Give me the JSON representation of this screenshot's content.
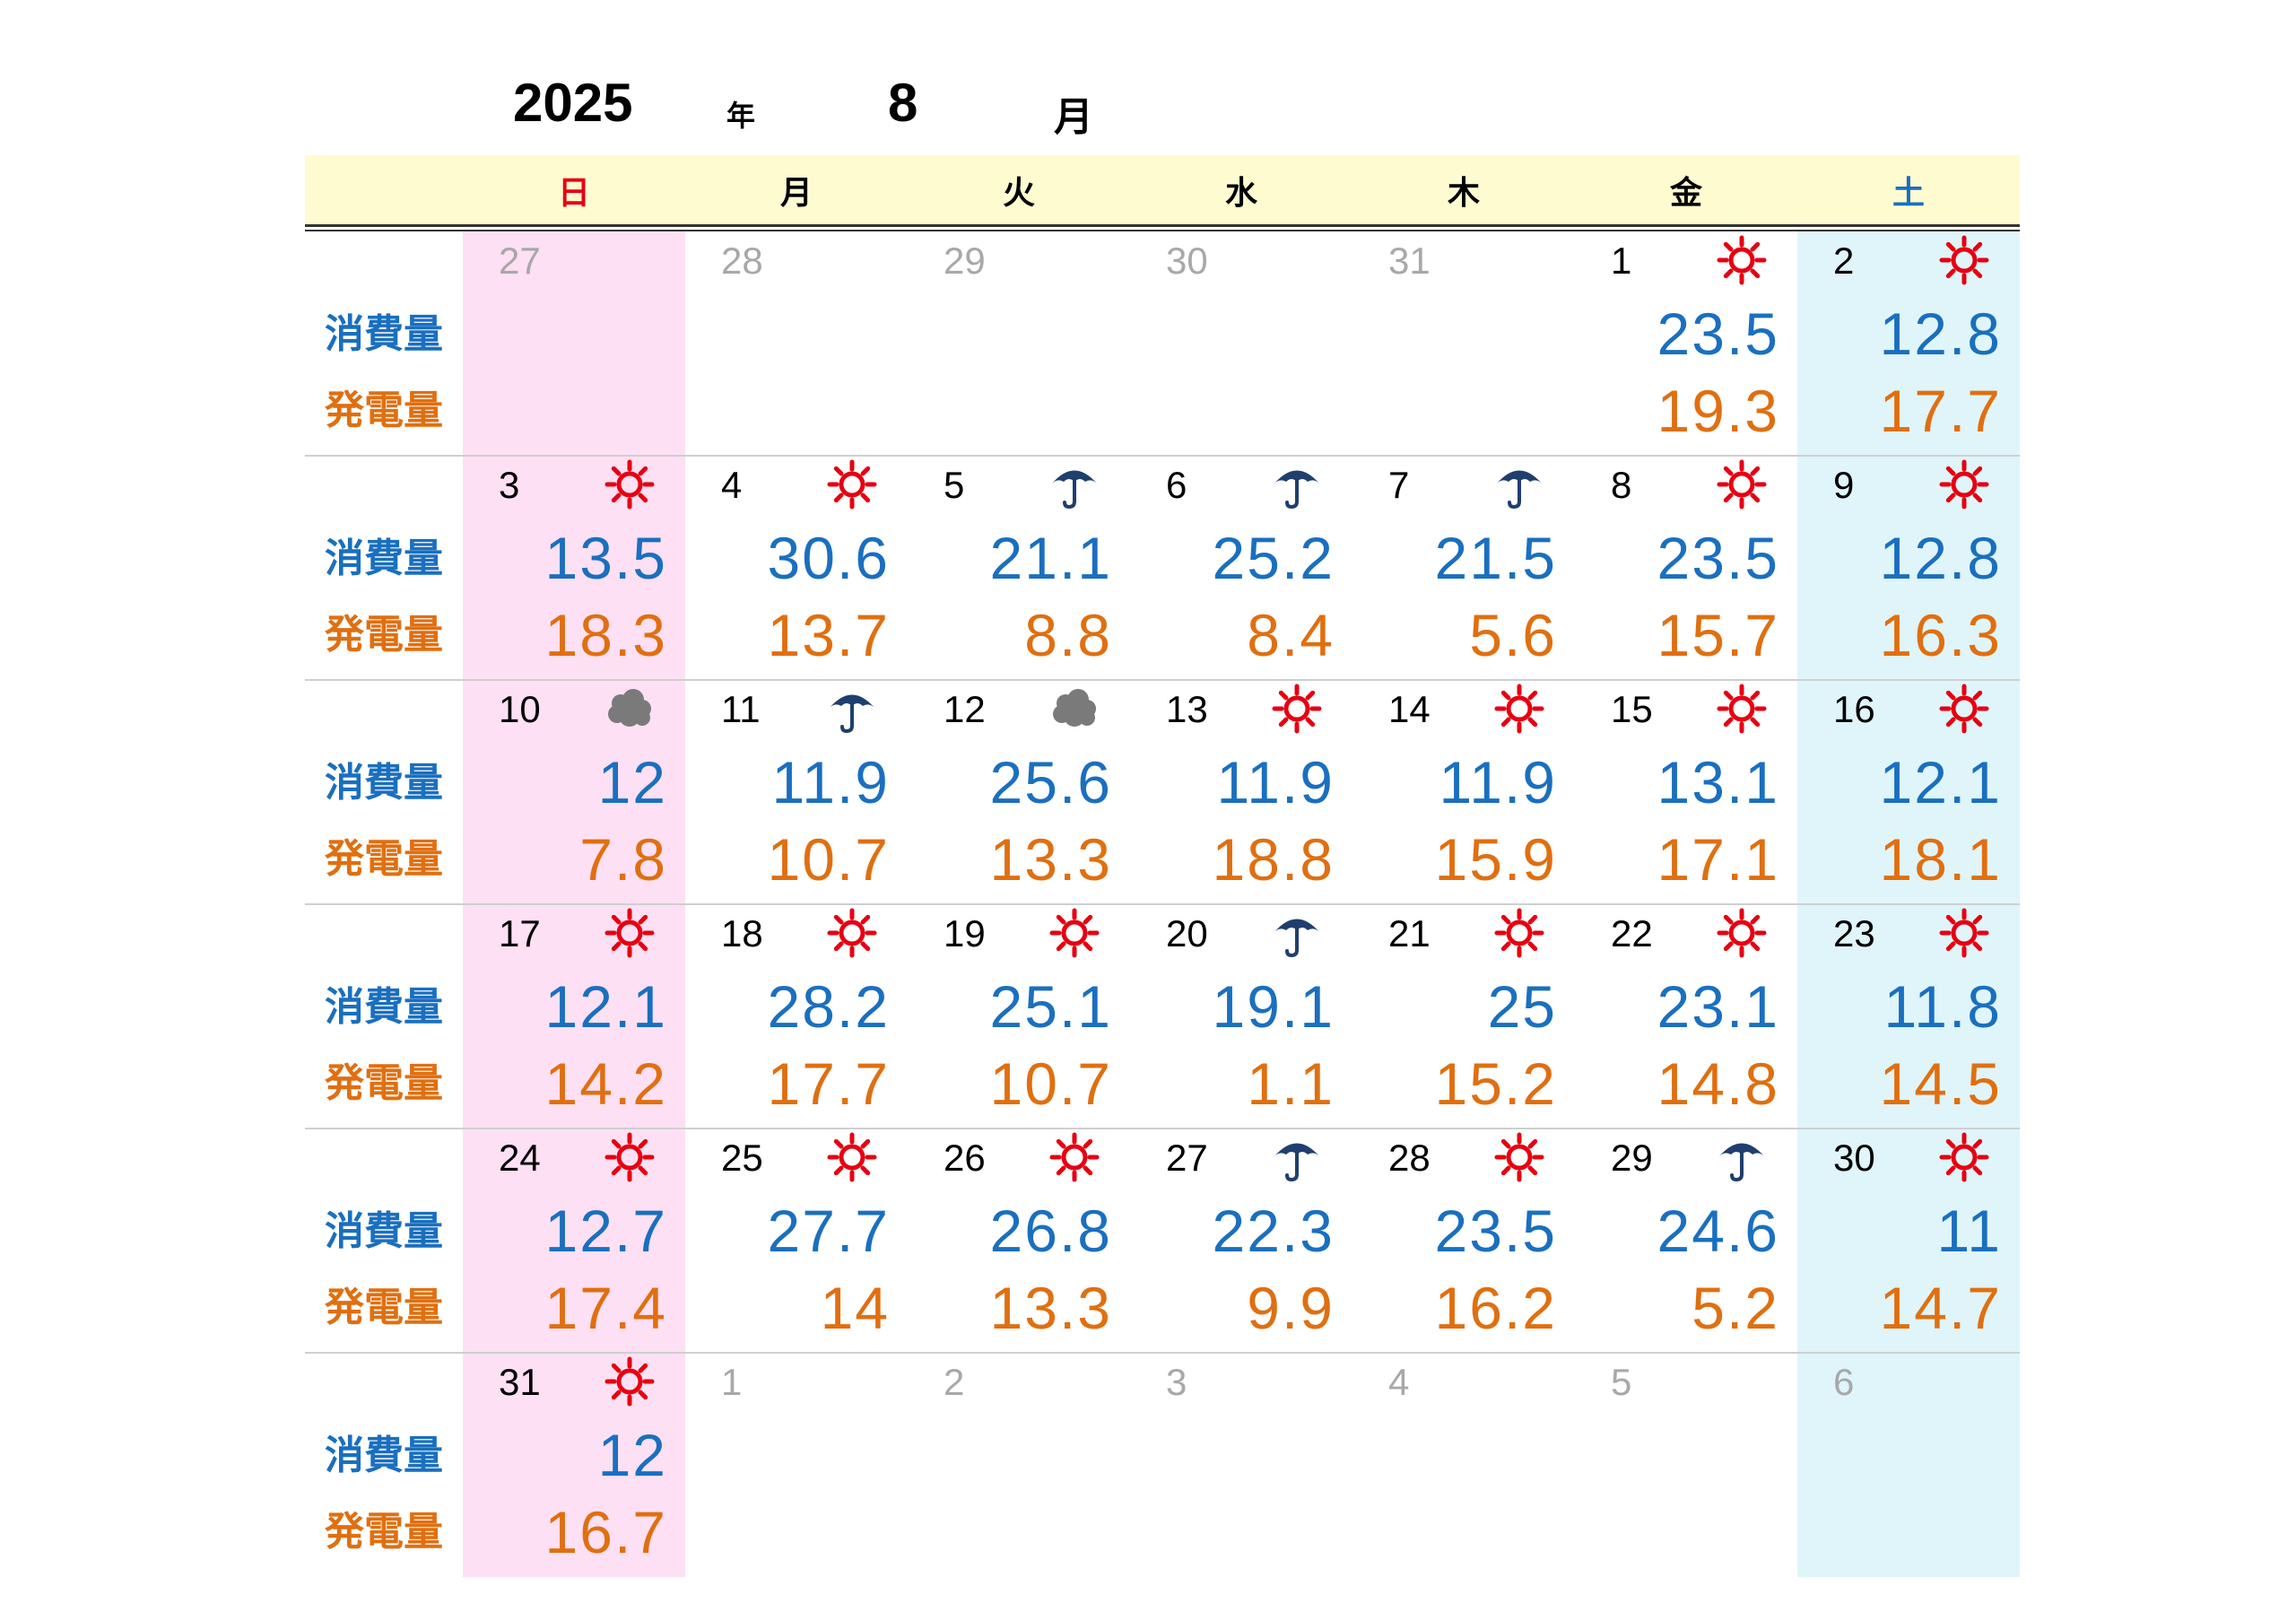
{
  "header": {
    "year": "2025",
    "year_char": "年",
    "month": "8",
    "month_char": "月"
  },
  "weekdays": [
    "日",
    "月",
    "火",
    "水",
    "木",
    "金",
    "土"
  ],
  "weekday_colors": [
    "#e60012",
    "#000000",
    "#000000",
    "#000000",
    "#000000",
    "#000000",
    "#1a6fbf"
  ],
  "labels": {
    "consumption": "消費量",
    "generation": "発電量"
  },
  "colors": {
    "consumption": "#1a6fbf",
    "generation": "#e06f10",
    "sun_icon": "#e60012",
    "rain_icon": "#1f3f6e",
    "cloud_icon": "#7a7a7a"
  },
  "weeks": [
    [
      {
        "day": "27",
        "other": true
      },
      {
        "day": "28",
        "other": true
      },
      {
        "day": "29",
        "other": true
      },
      {
        "day": "30",
        "other": true
      },
      {
        "day": "31",
        "other": true
      },
      {
        "day": "1",
        "weather": "sun",
        "use": "23.5",
        "gen": "19.3"
      },
      {
        "day": "2",
        "weather": "sun",
        "use": "12.8",
        "gen": "17.7"
      }
    ],
    [
      {
        "day": "3",
        "weather": "sun",
        "use": "13.5",
        "gen": "18.3"
      },
      {
        "day": "4",
        "weather": "sun",
        "use": "30.6",
        "gen": "13.7"
      },
      {
        "day": "5",
        "weather": "rain",
        "use": "21.1",
        "gen": "8.8"
      },
      {
        "day": "6",
        "weather": "rain",
        "use": "25.2",
        "gen": "8.4"
      },
      {
        "day": "7",
        "weather": "rain",
        "use": "21.5",
        "gen": "5.6"
      },
      {
        "day": "8",
        "weather": "sun",
        "use": "23.5",
        "gen": "15.7"
      },
      {
        "day": "9",
        "weather": "sun",
        "use": "12.8",
        "gen": "16.3"
      }
    ],
    [
      {
        "day": "10",
        "weather": "cloud",
        "use": "12",
        "gen": "7.8"
      },
      {
        "day": "11",
        "weather": "rain",
        "use": "11.9",
        "gen": "10.7"
      },
      {
        "day": "12",
        "weather": "cloud",
        "use": "25.6",
        "gen": "13.3"
      },
      {
        "day": "13",
        "weather": "sun",
        "use": "11.9",
        "gen": "18.8"
      },
      {
        "day": "14",
        "weather": "sun",
        "use": "11.9",
        "gen": "15.9"
      },
      {
        "day": "15",
        "weather": "sun",
        "use": "13.1",
        "gen": "17.1"
      },
      {
        "day": "16",
        "weather": "sun",
        "use": "12.1",
        "gen": "18.1"
      }
    ],
    [
      {
        "day": "17",
        "weather": "sun",
        "use": "12.1",
        "gen": "14.2"
      },
      {
        "day": "18",
        "weather": "sun",
        "use": "28.2",
        "gen": "17.7"
      },
      {
        "day": "19",
        "weather": "sun",
        "use": "25.1",
        "gen": "10.7"
      },
      {
        "day": "20",
        "weather": "rain",
        "use": "19.1",
        "gen": "1.1"
      },
      {
        "day": "21",
        "weather": "sun",
        "use": "25",
        "gen": "15.2"
      },
      {
        "day": "22",
        "weather": "sun",
        "use": "23.1",
        "gen": "14.8"
      },
      {
        "day": "23",
        "weather": "sun",
        "use": "11.8",
        "gen": "14.5"
      }
    ],
    [
      {
        "day": "24",
        "weather": "sun",
        "use": "12.7",
        "gen": "17.4"
      },
      {
        "day": "25",
        "weather": "sun",
        "use": "27.7",
        "gen": "14"
      },
      {
        "day": "26",
        "weather": "sun",
        "use": "26.8",
        "gen": "13.3"
      },
      {
        "day": "27",
        "weather": "rain",
        "use": "22.3",
        "gen": "9.9"
      },
      {
        "day": "28",
        "weather": "sun",
        "use": "23.5",
        "gen": "16.2"
      },
      {
        "day": "29",
        "weather": "rain",
        "use": "24.6",
        "gen": "5.2"
      },
      {
        "day": "30",
        "weather": "sun",
        "use": "11",
        "gen": "14.7"
      }
    ],
    [
      {
        "day": "31",
        "weather": "sun",
        "use": "12",
        "gen": "16.7"
      },
      {
        "day": "1",
        "other": true
      },
      {
        "day": "2",
        "other": true
      },
      {
        "day": "3",
        "other": true
      },
      {
        "day": "4",
        "other": true
      },
      {
        "day": "5",
        "other": true
      },
      {
        "day": "6",
        "other": true
      }
    ]
  ]
}
